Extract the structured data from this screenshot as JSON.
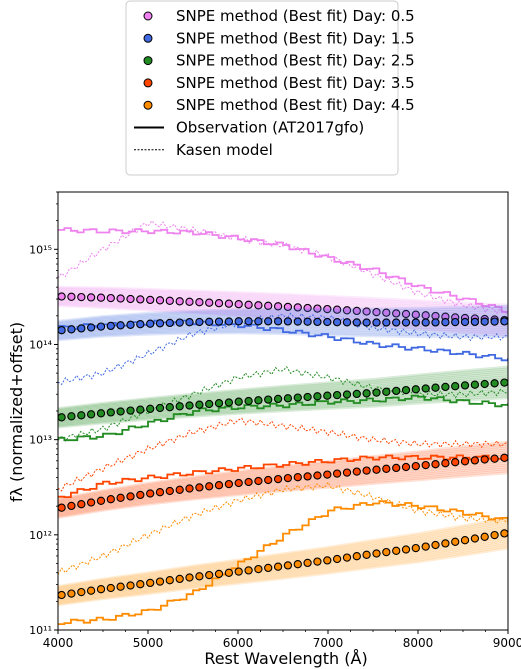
{
  "chart_data": {
    "type": "line",
    "title": "",
    "xlabel": "Rest Wavelength (Å)",
    "ylabel": "fλ (normalized+offset)",
    "xlim": [
      4000,
      9000
    ],
    "ylim": [
      100000000000.0,
      4000000000000000.0
    ],
    "yscale": "log",
    "grid": false,
    "legend_placement": "top-center (above plot)",
    "x_ticks": [
      "4000",
      "5000",
      "6000",
      "7000",
      "8000",
      "9000"
    ],
    "y_ticks": [
      {
        "value": 100000000000.0,
        "label": "10¹¹"
      },
      {
        "value": 1000000000000.0,
        "label": "10¹²"
      },
      {
        "value": 10000000000000.0,
        "label": "10¹³"
      },
      {
        "value": 100000000000000.0,
        "label": "10¹⁴"
      },
      {
        "value": 1000000000000000.0,
        "label": "10¹⁵"
      }
    ],
    "x": [
      4000,
      4500,
      5000,
      5500,
      6000,
      6500,
      7000,
      7500,
      8000,
      8500,
      9000
    ],
    "legend": [
      {
        "label": "SNPE method (Best fit) Day: 0.5",
        "marker": "circle",
        "color": "#ee82ee"
      },
      {
        "label": "SNPE method (Best fit) Day: 1.5",
        "marker": "circle",
        "color": "#4169e1"
      },
      {
        "label": "SNPE method (Best fit) Day: 2.5",
        "marker": "circle",
        "color": "#228b22"
      },
      {
        "label": "SNPE method (Best fit) Day: 3.5",
        "marker": "circle",
        "color": "#ff4500"
      },
      {
        "label": "SNPE method (Best fit) Day: 4.5",
        "marker": "circle",
        "color": "#ff8c00"
      },
      {
        "label": "Observation (AT2017gfo)",
        "marker": "solid-line",
        "color": "#000000"
      },
      {
        "label": "Kasen model",
        "marker": "dashed-line",
        "color": "#000000"
      }
    ],
    "series": [
      {
        "day": 0.5,
        "color": "#ee82ee",
        "best_fit": [
          320000000000000.0,
          310000000000000.0,
          295000000000000.0,
          280000000000000.0,
          265000000000000.0,
          250000000000000.0,
          235000000000000.0,
          220000000000000.0,
          205000000000000.0,
          190000000000000.0,
          180000000000000.0
        ],
        "observation": [
          1600000000000000.0,
          1550000000000000.0,
          1550000000000000.0,
          1500000000000000.0,
          1300000000000000.0,
          1100000000000000.0,
          800000000000000.0,
          600000000000000.0,
          400000000000000.0,
          300000000000000.0,
          220000000000000.0
        ],
        "kasen": [
          500000000000000.0,
          1000000000000000.0,
          1900000000000000.0,
          1600000000000000.0,
          1300000000000000.0,
          1100000000000000.0,
          850000000000000.0,
          550000000000000.0,
          350000000000000.0,
          260000000000000.0,
          220000000000000.0
        ]
      },
      {
        "day": 1.5,
        "color": "#4169e1",
        "best_fit": [
          140000000000000.0,
          155000000000000.0,
          165000000000000.0,
          172000000000000.0,
          175000000000000.0,
          175000000000000.0,
          172000000000000.0,
          170000000000000.0,
          170000000000000.0,
          172000000000000.0,
          175000000000000.0
        ],
        "observation": [
          150000000000000.0,
          160000000000000.0,
          170000000000000.0,
          170000000000000.0,
          160000000000000.0,
          140000000000000.0,
          120000000000000.0,
          100000000000000.0,
          90000000000000.0,
          80000000000000.0,
          70000000000000.0
        ],
        "kasen": [
          40000000000000.0,
          50000000000000.0,
          80000000000000.0,
          130000000000000.0,
          170000000000000.0,
          200000000000000.0,
          190000000000000.0,
          150000000000000.0,
          130000000000000.0,
          120000000000000.0,
          120000000000000.0
        ]
      },
      {
        "day": 2.5,
        "color": "#228b22",
        "best_fit": [
          17000000000000.0,
          19000000000000.0,
          21000000000000.0,
          23000000000000.0,
          25000000000000.0,
          27000000000000.0,
          29000000000000.0,
          31000000000000.0,
          34000000000000.0,
          37000000000000.0,
          40000000000000.0
        ],
        "observation": [
          10000000000000.0,
          11000000000000.0,
          15000000000000.0,
          20000000000000.0,
          22000000000000.0,
          23000000000000.0,
          25000000000000.0,
          26000000000000.0,
          28000000000000.0,
          25000000000000.0,
          23000000000000.0
        ],
        "kasen": [
          10000000000000.0,
          13000000000000.0,
          20000000000000.0,
          30000000000000.0,
          45000000000000.0,
          55000000000000.0,
          45000000000000.0,
          35000000000000.0,
          30000000000000.0,
          30000000000000.0,
          32000000000000.0
        ]
      },
      {
        "day": 3.5,
        "color": "#ff4500",
        "best_fit": [
          1900000000000.0,
          2300000000000.0,
          2700000000000.0,
          3100000000000.0,
          3500000000000.0,
          3900000000000.0,
          4300000000000.0,
          4800000000000.0,
          5300000000000.0,
          5900000000000.0,
          6500000000000.0
        ],
        "observation": [
          2500000000000.0,
          3500000000000.0,
          4000000000000.0,
          4500000000000.0,
          5000000000000.0,
          5500000000000.0,
          6000000000000.0,
          6500000000000.0,
          6500000000000.0,
          6500000000000.0,
          6500000000000.0
        ],
        "kasen": [
          3000000000000.0,
          5000000000000.0,
          8000000000000.0,
          12000000000000.0,
          16000000000000.0,
          14000000000000.0,
          12000000000000.0,
          10000000000000.0,
          9000000000000.0,
          9000000000000.0,
          9000000000000.0
        ]
      },
      {
        "day": 4.5,
        "color": "#ff8c00",
        "best_fit": [
          230000000000.0,
          270000000000.0,
          310000000000.0,
          360000000000.0,
          410000000000.0,
          470000000000.0,
          540000000000.0,
          630000000000.0,
          730000000000.0,
          870000000000.0,
          1050000000000.0
        ],
        "observation": [
          120000000000.0,
          130000000000.0,
          160000000000.0,
          250000000000.0,
          500000000000.0,
          1000000000000.0,
          1800000000000.0,
          2200000000000.0,
          2000000000000.0,
          1700000000000.0,
          1400000000000.0
        ],
        "kasen": [
          400000000000.0,
          600000000000.0,
          1000000000000.0,
          1600000000000.0,
          2300000000000.0,
          3000000000000.0,
          3300000000000.0,
          2500000000000.0,
          1800000000000.0,
          1500000000000.0,
          1400000000000.0
        ]
      }
    ]
  }
}
